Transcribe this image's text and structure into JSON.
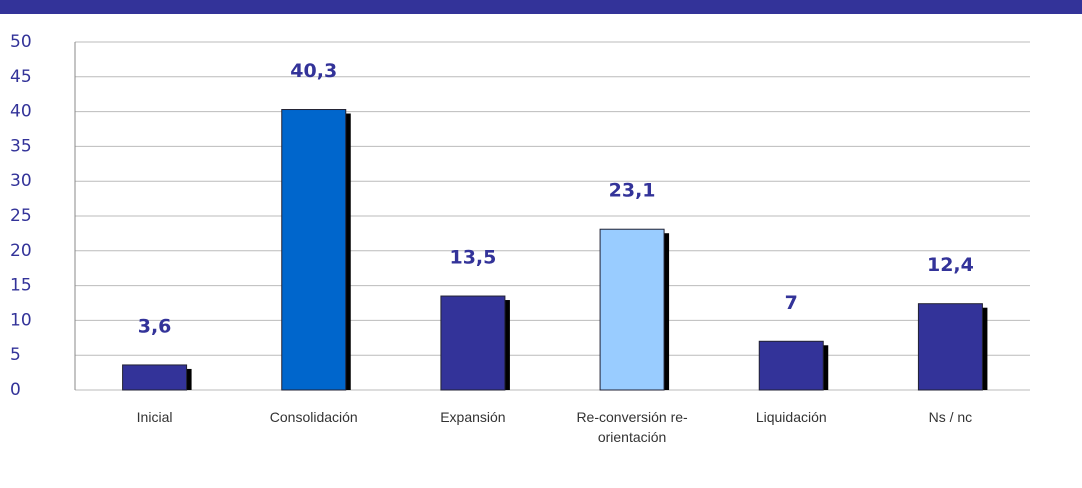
{
  "chart_data": {
    "type": "bar",
    "categories": [
      "Inicial",
      "Consolidación",
      "Expansión",
      "Re-conversión re-orientación",
      "Liquidación",
      "Ns / nc"
    ],
    "values": [
      3.6,
      40.3,
      13.5,
      23.1,
      7,
      12.4
    ],
    "value_labels": [
      "3,6",
      "40,3",
      "13,5",
      "23,1",
      "7",
      "12,4"
    ],
    "colors": [
      "#333399",
      "#0066cc",
      "#333399",
      "#99ccff",
      "#333399",
      "#333399"
    ],
    "ylim": [
      0,
      50
    ],
    "yticks": [
      0,
      5,
      10,
      15,
      20,
      25,
      30,
      35,
      40,
      45,
      50
    ],
    "grid": true
  }
}
